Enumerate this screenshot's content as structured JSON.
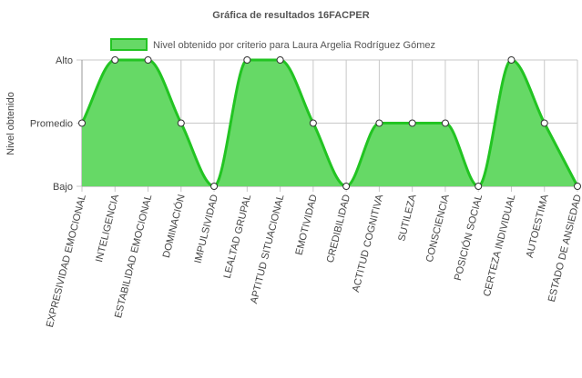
{
  "chart_data": {
    "type": "area",
    "title": "Gráfica de resultados 16FACPER",
    "ylabel": "Nivel obtenido",
    "xlabel": "",
    "y_levels": [
      "Bajo",
      "Promedio",
      "Alto"
    ],
    "ylim": [
      0,
      2
    ],
    "legend_position": "top",
    "grid": true,
    "colors": {
      "fill": "#66d966",
      "stroke": "#22c422",
      "point_fill": "#ffffff",
      "point_stroke": "#333333"
    },
    "categories": [
      "EXPRESIVIDAD EMOCIONAL",
      "INTELIGENCIA",
      "ESTABILIDAD EMOCIONAL",
      "DOMINACIÓN",
      "IMPULSIVIDAD",
      "LEALTAD GRUPAL",
      "APTITUD SITUACIONAL",
      "EMOTIVIDAD",
      "CREDIBILIDAD",
      "ACTITUD COGNITIVA",
      "SUTILEZA",
      "CONSCIENCIA",
      "POSICIÓN SOCIAL",
      "CERTEZA INDIVIDUAL",
      "AUTOESTIMA",
      "ESTADO DE ANSIEDAD"
    ],
    "series": [
      {
        "name": "Nivel obtenido por criterio para Laura Argelia Rodríguez Gómez",
        "values": [
          1,
          2,
          2,
          1,
          0,
          2,
          2,
          1,
          0,
          1,
          1,
          1,
          0,
          2,
          1,
          0
        ]
      }
    ]
  }
}
